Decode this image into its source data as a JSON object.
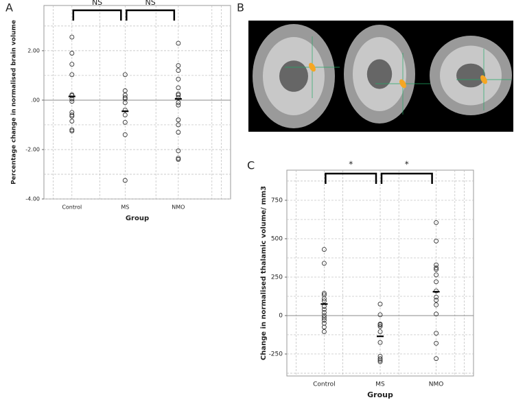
{
  "chart_data": [
    {
      "type": "dotplot",
      "panel": "A",
      "ylabel": "Percentage change in normalised brain volume",
      "xlabel": "Group",
      "categories": [
        "Control",
        "MS",
        "NMO"
      ],
      "points": [
        [
          2.55,
          1.9,
          1.45,
          1.03,
          0.22,
          0.18,
          0.05,
          -0.05,
          -0.5,
          -0.6,
          -0.65,
          -0.85,
          -1.2,
          -1.25
        ],
        [
          1.03,
          0.38,
          0.2,
          0.1,
          0.05,
          -0.1,
          -0.4,
          -0.6,
          -0.9,
          -1.4,
          -3.25
        ],
        [
          2.3,
          1.4,
          1.2,
          0.85,
          0.5,
          0.25,
          0.2,
          0.1,
          -0.1,
          -0.2,
          -0.8,
          -1.0,
          -1.3,
          -2.05,
          -2.35,
          -2.4
        ]
      ],
      "means": [
        0.15,
        -0.45,
        0.05
      ],
      "annotations": [
        "NS",
        "NS"
      ],
      "ylim": [
        -4,
        3.83
      ],
      "yticks": [
        {
          "value": 2,
          "label": "2.00"
        },
        {
          "value": 0,
          "label": ".00"
        },
        {
          "value": -2,
          "label": "-2.00"
        },
        {
          "value": -4,
          "label": "-4.00"
        }
      ],
      "minor_grid": [
        3,
        1,
        -1,
        -3
      ],
      "grid": true,
      "color": "#333333"
    },
    {
      "type": "image",
      "panel": "B"
    },
    {
      "type": "dotplot",
      "panel": "C",
      "ylabel": "Change in normalised thalamic volume/ mm3",
      "xlabel": "Group",
      "categories": [
        "Control",
        "MS",
        "NMO"
      ],
      "points": [
        [
          430,
          340,
          145,
          135,
          110,
          95,
          60,
          40,
          20,
          0,
          -15,
          -30,
          -50,
          -75,
          -105
        ],
        [
          75,
          5,
          -55,
          -60,
          -70,
          -105,
          -175,
          -265,
          -280,
          -290,
          -300
        ],
        [
          605,
          485,
          330,
          310,
          300,
          265,
          220,
          160,
          120,
          100,
          70,
          10,
          -115,
          -180,
          -280
        ]
      ],
      "means": [
        75,
        -135,
        155
      ],
      "annotations": [
        "*",
        "*"
      ],
      "ylim": [
        -393,
        946
      ],
      "yticks": [
        750,
        500,
        250,
        0,
        -250
      ],
      "minor_grid": [
        875,
        625,
        375,
        125,
        -125,
        -375
      ],
      "grid": true,
      "color": "#333333"
    }
  ]
}
